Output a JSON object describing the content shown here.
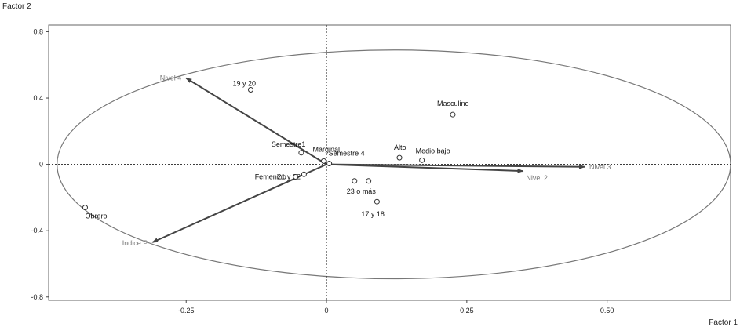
{
  "chart_data": {
    "type": "scatter",
    "xlabel": "Factor 1",
    "ylabel": "Factor 2",
    "xlim": [
      -0.495,
      0.72
    ],
    "ylim": [
      -0.82,
      0.84
    ],
    "x_ticks": [
      -0.25,
      0,
      0.25,
      0.5
    ],
    "x_tick_labels": [
      "-0.25",
      "0",
      "0.25",
      "0.50"
    ],
    "y_ticks": [
      -0.8,
      -0.4,
      0,
      0.4,
      0.8
    ],
    "y_tick_labels": [
      "-0.8",
      "-0.4",
      "0",
      "0.4",
      "0.8"
    ],
    "ellipse": {
      "center": [
        0.12,
        0.0
      ],
      "rx": 0.6,
      "ry": 0.69
    },
    "points": [
      {
        "label": "19 y 20",
        "x": -0.135,
        "y": 0.45
      },
      {
        "label": "Masculino",
        "x": 0.225,
        "y": 0.3
      },
      {
        "label": "Semestre1",
        "x": -0.045,
        "y": 0.07
      },
      {
        "label": "Marginal",
        "x": -0.005,
        "y": 0.02
      },
      {
        "label": "Semestre 4",
        "x": 0.005,
        "y": 0.005
      },
      {
        "label": "Alto",
        "x": 0.13,
        "y": 0.04
      },
      {
        "label": "Medio bajo",
        "x": 0.17,
        "y": 0.025
      },
      {
        "label": "21 y 22",
        "x": -0.04,
        "y": -0.06
      },
      {
        "label": "Femenino",
        "x": -0.055,
        "y": -0.075
      },
      {
        "label": "23 o más",
        "x": 0.05,
        "y": -0.1
      },
      {
        "label": "",
        "x": 0.075,
        "y": -0.1
      },
      {
        "label": "17 y 18",
        "x": 0.09,
        "y": -0.225
      },
      {
        "label": "Obrero",
        "x": -0.43,
        "y": -0.26
      }
    ],
    "vectors": [
      {
        "label": "Nivel 4",
        "x": -0.25,
        "y": 0.52
      },
      {
        "label": "Nivel 3",
        "x": 0.46,
        "y": -0.015
      },
      {
        "label": "Nivel 2",
        "x": 0.35,
        "y": -0.04
      },
      {
        "label": "Indice P",
        "x": -0.31,
        "y": -0.47
      }
    ]
  }
}
